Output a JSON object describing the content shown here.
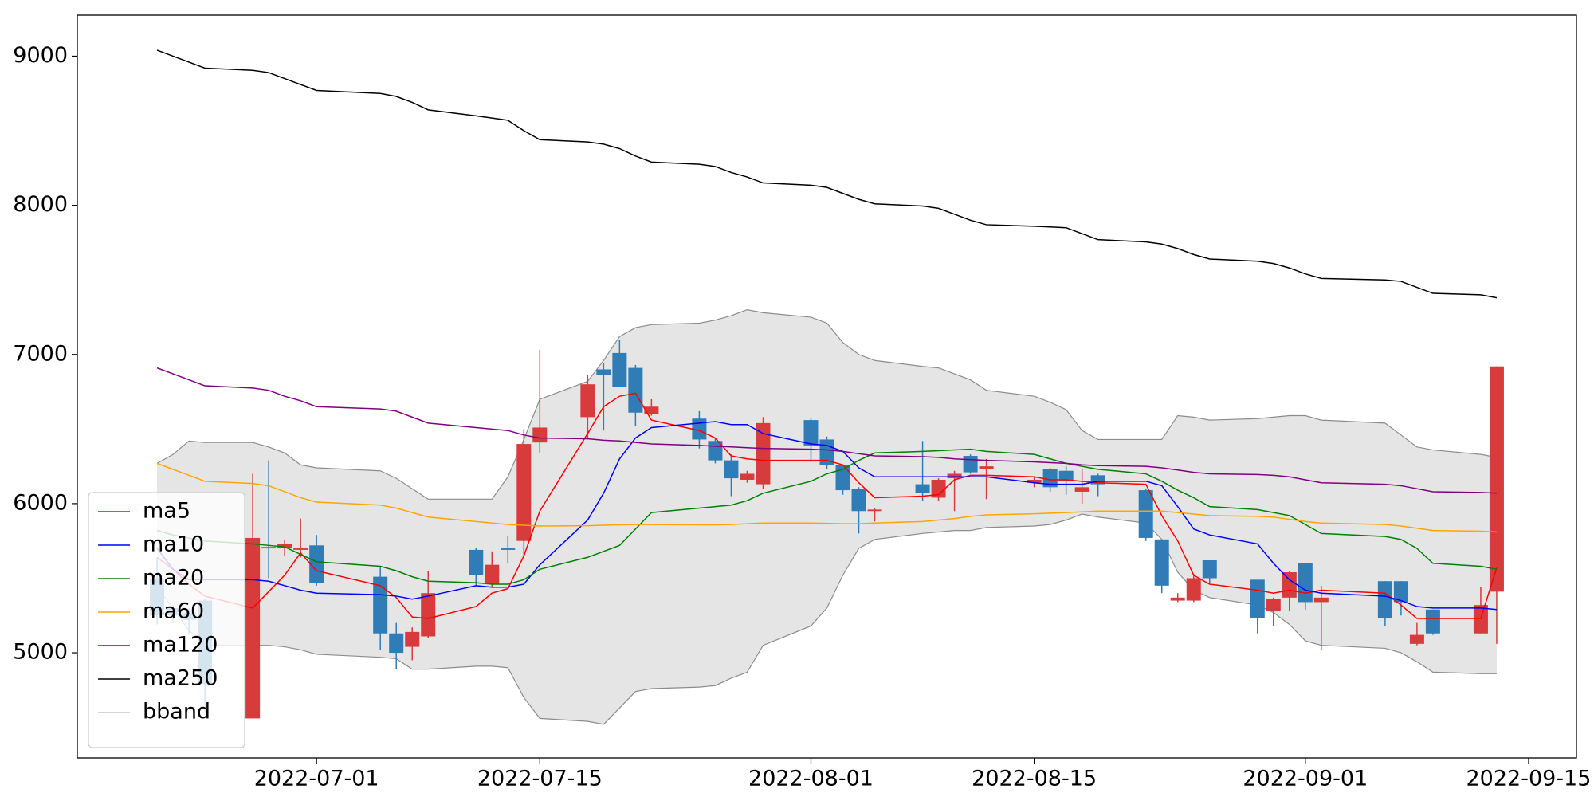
{
  "chart_data": {
    "type": "candlestick",
    "x": [
      "2022-06-21",
      "2022-06-22",
      "2022-06-23",
      "2022-06-24",
      "2022-06-27",
      "2022-06-28",
      "2022-06-29",
      "2022-06-30",
      "2022-07-01",
      "2022-07-05",
      "2022-07-06",
      "2022-07-07",
      "2022-07-08",
      "2022-07-11",
      "2022-07-12",
      "2022-07-13",
      "2022-07-14",
      "2022-07-15",
      "2022-07-18",
      "2022-07-19",
      "2022-07-20",
      "2022-07-21",
      "2022-07-22",
      "2022-07-25",
      "2022-07-26",
      "2022-07-27",
      "2022-07-28",
      "2022-07-29",
      "2022-08-01",
      "2022-08-02",
      "2022-08-03",
      "2022-08-04",
      "2022-08-05",
      "2022-08-08",
      "2022-08-09",
      "2022-08-10",
      "2022-08-11",
      "2022-08-12",
      "2022-08-15",
      "2022-08-16",
      "2022-08-17",
      "2022-08-18",
      "2022-08-19",
      "2022-08-22",
      "2022-08-23",
      "2022-08-24",
      "2022-08-25",
      "2022-08-26",
      "2022-08-29",
      "2022-08-30",
      "2022-08-31",
      "2022-09-01",
      "2022-09-02",
      "2022-09-06",
      "2022-09-07",
      "2022-09-08",
      "2022-09-09",
      "2022-09-12",
      "2022-09-13"
    ],
    "open": [
      5500,
      5300,
      5270,
      5350,
      4560,
      5710,
      5700,
      5690,
      5720,
      5510,
      5130,
      5040,
      5110,
      5690,
      5460,
      5700,
      5750,
      6410,
      6580,
      6900,
      7010,
      6910,
      6600,
      6570,
      6420,
      6290,
      6160,
      6130,
      6560,
      6430,
      6260,
      6100,
      5950,
      6130,
      6040,
      6170,
      6320,
      6230,
      6140,
      6230,
      6220,
      6080,
      6190,
      6090,
      5760,
      5350,
      5350,
      5620,
      5490,
      5280,
      5370,
      5600,
      5340,
      5480,
      5480,
      5060,
      5290,
      5130,
      5410
    ],
    "high": [
      5640,
      5320,
      5300,
      5360,
      6200,
      6290,
      5760,
      5900,
      5790,
      5580,
      5200,
      5170,
      5550,
      5700,
      5680,
      5780,
      6500,
      7030,
      6860,
      6940,
      7100,
      6930,
      6700,
      6620,
      6440,
      6330,
      6220,
      6580,
      6570,
      6450,
      6260,
      6110,
      5970,
      6420,
      6170,
      6220,
      6330,
      6300,
      6180,
      6240,
      6250,
      6230,
      6200,
      6100,
      5760,
      5400,
      5530,
      5620,
      5490,
      5370,
      5550,
      5600,
      5450,
      5480,
      5480,
      5200,
      5290,
      5440,
      6920
    ],
    "low": [
      5190,
      5200,
      5130,
      4600,
      4560,
      5500,
      5650,
      5640,
      5450,
      5020,
      4890,
      4950,
      5100,
      5450,
      5440,
      5600,
      5650,
      6340,
      6430,
      6490,
      6780,
      6520,
      6590,
      6370,
      6270,
      6050,
      6140,
      6100,
      6280,
      6230,
      6060,
      5800,
      5880,
      6020,
      6020,
      5950,
      6200,
      6030,
      6110,
      6080,
      6060,
      6000,
      6050,
      5750,
      5400,
      5340,
      5340,
      5470,
      5130,
      5180,
      5280,
      5290,
      5020,
      5180,
      5250,
      5050,
      5120,
      5130,
      5060
    ],
    "close": [
      5250,
      5250,
      5220,
      4790,
      5770,
      5700,
      5730,
      5700,
      5470,
      5130,
      5000,
      5140,
      5400,
      5520,
      5590,
      5690,
      6400,
      6510,
      6800,
      6860,
      6780,
      6610,
      6650,
      6430,
      6290,
      6170,
      6200,
      6540,
      6390,
      6260,
      6090,
      5950,
      5960,
      6070,
      6160,
      6200,
      6210,
      6250,
      6160,
      6110,
      6150,
      6110,
      6130,
      5770,
      5450,
      5370,
      5500,
      5500,
      5230,
      5360,
      5540,
      5340,
      5370,
      5230,
      5340,
      5120,
      5130,
      5320,
      6920
    ],
    "up_color": "#d83b3b",
    "down_color": "#2f7cb6",
    "series": [
      {
        "name": "ma5",
        "color": "red",
        "values": [
          5640,
          5560,
          5460,
          5380,
          5300,
          5410,
          5520,
          5670,
          5550,
          5450,
          5370,
          5240,
          5230,
          5310,
          5400,
          5430,
          5650,
          5950,
          6470,
          6650,
          6720,
          6740,
          6560,
          6490,
          6440,
          6320,
          6300,
          6290,
          6290,
          6290,
          6260,
          6140,
          6040,
          6050,
          6060,
          6160,
          6190,
          6190,
          6180,
          6160,
          6160,
          6150,
          6140,
          6130,
          5920,
          5750,
          5520,
          5460,
          5420,
          5400,
          5420,
          5400,
          5420,
          5400,
          5320,
          5230,
          5230,
          5230,
          5570
        ]
      },
      {
        "name": "ma10",
        "color": "blue",
        "values": [
          5700,
          5560,
          5490,
          5490,
          5490,
          5480,
          5450,
          5420,
          5400,
          5390,
          5380,
          5360,
          5380,
          5450,
          5440,
          5440,
          5460,
          5590,
          5890,
          6070,
          6300,
          6440,
          6510,
          6540,
          6550,
          6530,
          6530,
          6470,
          6400,
          6390,
          6350,
          6240,
          6180,
          6180,
          6180,
          6180,
          6180,
          6180,
          6140,
          6130,
          6130,
          6130,
          6150,
          6150,
          6120,
          5980,
          5830,
          5790,
          5730,
          5600,
          5490,
          5420,
          5400,
          5380,
          5350,
          5310,
          5300,
          5300,
          5290
        ]
      },
      {
        "name": "ma20",
        "color": "green",
        "values": [
          5820,
          5790,
          5770,
          5750,
          5730,
          5720,
          5710,
          5660,
          5610,
          5580,
          5550,
          5510,
          5480,
          5470,
          5460,
          5460,
          5490,
          5560,
          5640,
          5680,
          5720,
          5830,
          5940,
          5970,
          5980,
          5990,
          6020,
          6070,
          6150,
          6200,
          6230,
          6290,
          6340,
          6350,
          6355,
          6360,
          6365,
          6350,
          6330,
          6300,
          6270,
          6250,
          6230,
          6200,
          6150,
          6090,
          6040,
          5980,
          5960,
          5940,
          5920,
          5860,
          5800,
          5780,
          5760,
          5700,
          5600,
          5580,
          5560
        ]
      },
      {
        "name": "ma60",
        "color": "orange",
        "values": [
          6270,
          6230,
          6190,
          6150,
          6135,
          6120,
          6080,
          6040,
          6010,
          5990,
          5970,
          5940,
          5910,
          5880,
          5870,
          5860,
          5855,
          5850,
          5852,
          5855,
          5858,
          5860,
          5860,
          5858,
          5858,
          5860,
          5865,
          5870,
          5870,
          5868,
          5865,
          5865,
          5870,
          5880,
          5890,
          5900,
          5915,
          5925,
          5932,
          5936,
          5940,
          5945,
          5950,
          5950,
          5950,
          5940,
          5930,
          5920,
          5915,
          5910,
          5895,
          5880,
          5870,
          5860,
          5850,
          5835,
          5820,
          5815,
          5810
        ]
      },
      {
        "name": "ma120",
        "color": "purple",
        "values": [
          6910,
          6870,
          6830,
          6790,
          6775,
          6760,
          6720,
          6690,
          6650,
          6635,
          6620,
          6580,
          6540,
          6510,
          6500,
          6490,
          6460,
          6440,
          6435,
          6425,
          6420,
          6410,
          6400,
          6390,
          6385,
          6380,
          6375,
          6370,
          6365,
          6360,
          6350,
          6335,
          6320,
          6315,
          6310,
          6300,
          6295,
          6290,
          6280,
          6275,
          6270,
          6260,
          6255,
          6250,
          6240,
          6225,
          6210,
          6200,
          6195,
          6190,
          6180,
          6160,
          6140,
          6130,
          6120,
          6100,
          6080,
          6075,
          6070
        ]
      },
      {
        "name": "ma250",
        "color": "black",
        "values": [
          9040,
          9000,
          8960,
          8920,
          8905,
          8890,
          8850,
          8810,
          8770,
          8750,
          8730,
          8690,
          8640,
          8600,
          8585,
          8570,
          8500,
          8440,
          8425,
          8410,
          8380,
          8330,
          8290,
          8275,
          8260,
          8220,
          8190,
          8150,
          8135,
          8120,
          8080,
          8040,
          8010,
          7995,
          7980,
          7940,
          7900,
          7870,
          7860,
          7855,
          7850,
          7810,
          7770,
          7755,
          7740,
          7710,
          7670,
          7640,
          7625,
          7610,
          7580,
          7540,
          7510,
          7500,
          7490,
          7450,
          7410,
          7400,
          7380
        ]
      }
    ],
    "band": {
      "name": "bband",
      "color": "#8c8c8c",
      "fill": "#e5e5e5",
      "upper": [
        6270,
        6330,
        6420,
        6410,
        6410,
        6380,
        6340,
        6260,
        6240,
        6220,
        6170,
        6100,
        6030,
        6030,
        6030,
        6180,
        6430,
        6700,
        6820,
        6960,
        7120,
        7180,
        7200,
        7210,
        7230,
        7260,
        7300,
        7280,
        7250,
        7210,
        7080,
        7000,
        6960,
        6920,
        6910,
        6870,
        6830,
        6760,
        6720,
        6680,
        6630,
        6490,
        6430,
        6430,
        6430,
        6590,
        6580,
        6560,
        6570,
        6580,
        6590,
        6590,
        6560,
        6540,
        6460,
        6380,
        6360,
        6330,
        6310
      ],
      "lower": [
        5440,
        5300,
        5150,
        5050,
        5050,
        5050,
        5040,
        5020,
        4990,
        4970,
        4960,
        4890,
        4890,
        4910,
        4910,
        4900,
        4700,
        4560,
        4540,
        4520,
        4630,
        4740,
        4760,
        4770,
        4780,
        4830,
        4870,
        5050,
        5180,
        5300,
        5520,
        5700,
        5760,
        5800,
        5810,
        5820,
        5820,
        5840,
        5850,
        5860,
        5890,
        5930,
        5910,
        5870,
        5760,
        5540,
        5420,
        5370,
        5320,
        5270,
        5190,
        5080,
        5050,
        5030,
        5000,
        4940,
        4870,
        4860,
        4860
      ]
    },
    "xlim": [
      "2022-06-16",
      "2022-09-18"
    ],
    "xticks": [
      "2022-07-01",
      "2022-07-15",
      "2022-08-01",
      "2022-08-15",
      "2022-09-01",
      "2022-09-15"
    ],
    "ylim": [
      4295,
      9275
    ],
    "yticks": [
      5000,
      6000,
      7000,
      8000,
      9000
    ],
    "grid": false,
    "legend": "lower left"
  }
}
